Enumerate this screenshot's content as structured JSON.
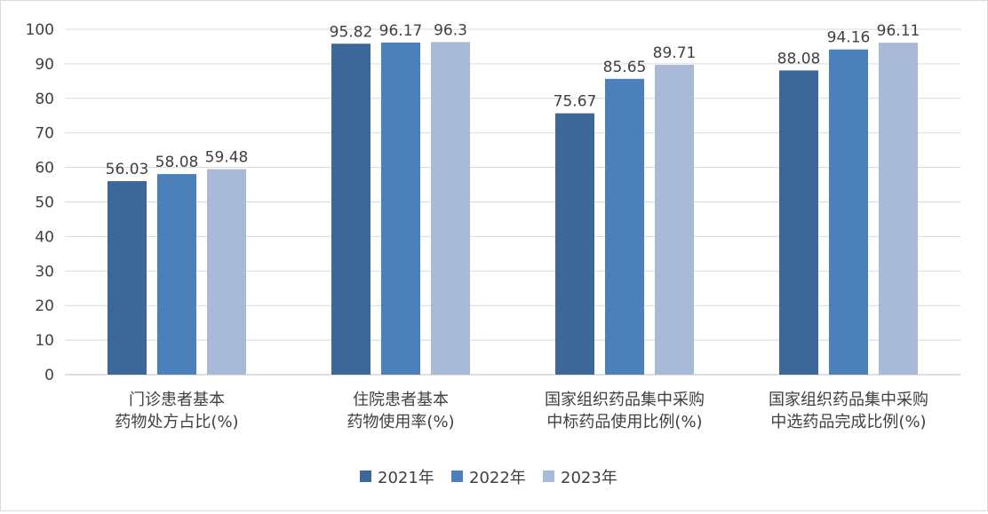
{
  "chart_data": {
    "type": "bar",
    "title": "",
    "xlabel": "",
    "ylabel": "",
    "ylim": [
      0,
      100
    ],
    "yticks": [
      0,
      10,
      20,
      30,
      40,
      50,
      60,
      70,
      80,
      90,
      100
    ],
    "grid": true,
    "legend_position": "bottom",
    "categories": [
      [
        "门诊患者基本",
        "药物处方占比(%)"
      ],
      [
        "住院患者基本",
        "药物使用率(%)"
      ],
      [
        "国家组织药品集中采购",
        "中标药品使用比例(%)"
      ],
      [
        "国家组织药品集中采购",
        "中选药品完成比例(%)"
      ]
    ],
    "series": [
      {
        "name": "2021年",
        "color": "#3d6699",
        "values": [
          56.03,
          95.82,
          75.67,
          88.08
        ],
        "labels": [
          "56.03",
          "95.82",
          "75.67",
          "88.08"
        ]
      },
      {
        "name": "2022年",
        "color": "#4b80bb",
        "values": [
          58.08,
          96.17,
          85.65,
          94.16
        ],
        "labels": [
          "58.08",
          "96.17",
          "85.65",
          "94.16"
        ]
      },
      {
        "name": "2023年",
        "color": "#a9b9d8",
        "values": [
          59.48,
          96.3,
          89.71,
          96.11
        ],
        "labels": [
          "59.48",
          "96.3",
          "89.71",
          "96.11"
        ]
      }
    ]
  }
}
